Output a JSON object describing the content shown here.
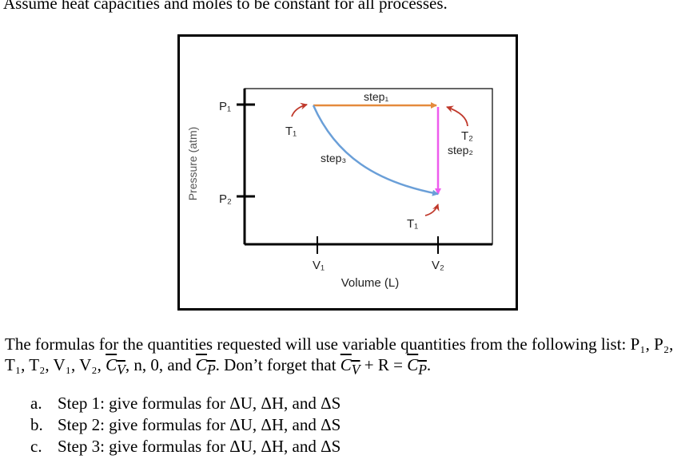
{
  "intro": "Assume heat capacities and moles to be constant for all processes.",
  "diagram": {
    "y_axis_label": "Pressure (atm)",
    "x_axis_label": "Volume (L)",
    "p1": "P₁",
    "p2": "P₂",
    "v1": "V₁",
    "v2": "V₂",
    "t1_top": "T₁",
    "t2": "T₂",
    "t1_bottom": "T₁",
    "step1": "step₁",
    "step2": "step₂",
    "step3": "step₃",
    "colors": {
      "step1": "#e58a3c",
      "step2": "#ee5ced",
      "step3": "#6a9fd8",
      "arrows": "#c0392b"
    }
  },
  "formulas": {
    "text_1": "The formulas for the quantities requested will use variable quantities from the following list: P₁, P₂, T₁, T₂, V₁, V₂, ",
    "cv": "C",
    "cv_sub": "V",
    "text_2": ", n, 0, and ",
    "cp": "C",
    "cp_sub": "P",
    "text_3": ". Don’t forget that ",
    "text_4": " + R = ",
    "text_5": "."
  },
  "steps": [
    {
      "letter": "a.",
      "text": "Step 1: give formulas for ΔU, ΔH, and ΔS"
    },
    {
      "letter": "b.",
      "text": "Step 2: give formulas for ΔU, ΔH, and ΔS"
    },
    {
      "letter": "c.",
      "text": "Step 3: give formulas for ΔU, ΔH, and ΔS"
    }
  ]
}
